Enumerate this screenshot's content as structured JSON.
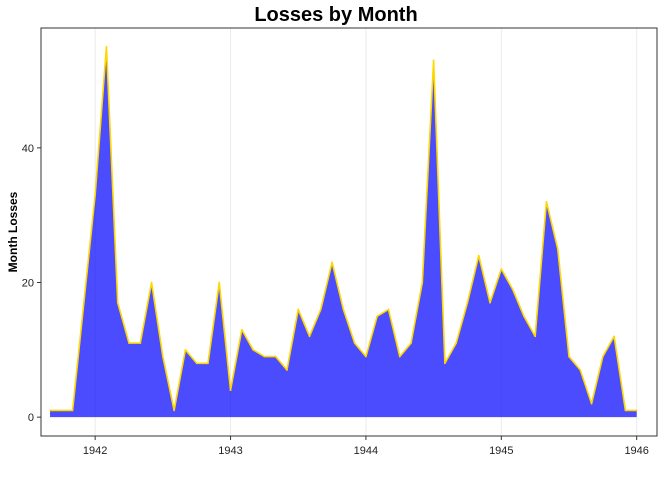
{
  "chart_data": {
    "type": "area",
    "title": "Losses by Month",
    "xlabel": "",
    "ylabel": "Month Losses",
    "x_tick_labels": [
      "1942",
      "1943",
      "1944",
      "1945",
      "1946"
    ],
    "x_ticks": [
      1942,
      1943,
      1944,
      1945,
      1946
    ],
    "y_tick_labels": [
      "0",
      "20",
      "40"
    ],
    "y_ticks": [
      0,
      20,
      40
    ],
    "xlim": [
      1941.6,
      1946.15
    ],
    "ylim": [
      -2.8,
      57.8
    ],
    "grid": "vertical major lines, light grey",
    "fill_color": "#0000FF",
    "line_color": "#FFD700",
    "x": [
      "1941-09",
      "1941-10",
      "1941-11",
      "1941-12",
      "1942-01",
      "1942-02",
      "1942-03",
      "1942-04",
      "1942-05",
      "1942-06",
      "1942-07",
      "1942-08",
      "1942-09",
      "1942-10",
      "1942-11",
      "1942-12",
      "1943-01",
      "1943-02",
      "1943-03",
      "1943-04",
      "1943-05",
      "1943-06",
      "1943-07",
      "1943-08",
      "1943-09",
      "1943-10",
      "1943-11",
      "1943-12",
      "1944-01",
      "1944-02",
      "1944-03",
      "1944-04",
      "1944-05",
      "1944-06",
      "1944-07",
      "1944-08",
      "1944-09",
      "1944-10",
      "1944-11",
      "1944-12",
      "1945-01",
      "1945-02",
      "1945-03",
      "1945-04",
      "1945-05",
      "1945-06",
      "1945-07",
      "1945-08",
      "1945-09",
      "1945-10",
      "1945-11",
      "1945-12",
      "1946-01"
    ],
    "values": [
      1,
      1,
      1,
      17,
      33,
      55,
      17,
      11,
      11,
      20,
      9,
      1,
      10,
      8,
      8,
      20,
      4,
      13,
      10,
      9,
      9,
      7,
      16,
      12,
      16,
      23,
      16,
      11,
      9,
      15,
      16,
      9,
      11,
      20,
      53,
      8,
      11,
      17,
      24,
      17,
      22,
      19,
      15,
      12,
      32,
      25,
      9,
      7,
      2,
      9,
      12,
      1,
      1
    ]
  }
}
